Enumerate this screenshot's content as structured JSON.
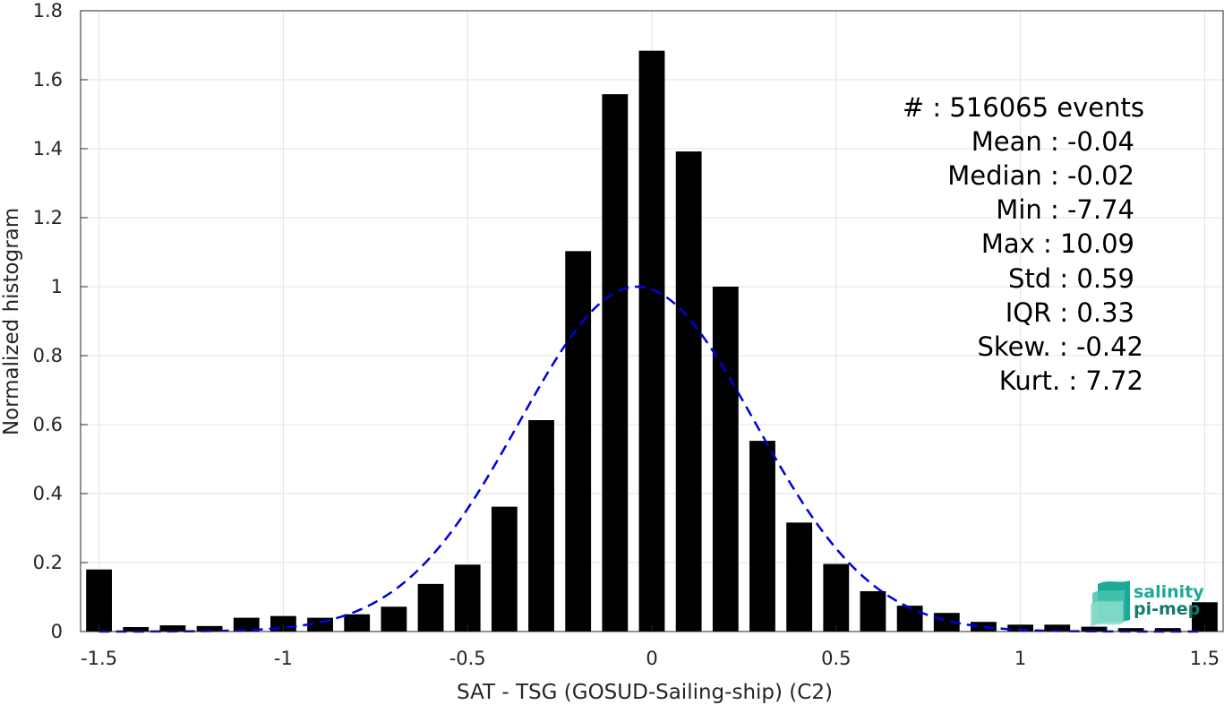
{
  "chart_data": {
    "type": "bar",
    "xlabel": "SAT - TSG (GOSUD-Sailing-ship) (C2)",
    "ylabel": "Normalized histogram",
    "xlim": [
      -1.55,
      1.55
    ],
    "ylim": [
      0,
      1.8
    ],
    "xticks": [
      -1.5,
      -1,
      -0.5,
      0,
      0.5,
      1,
      1.5
    ],
    "xtick_labels": [
      "-1.5",
      "-1",
      "-0.5",
      "0",
      "0.5",
      "1",
      "1.5"
    ],
    "yticks": [
      0,
      0.2,
      0.4,
      0.6,
      0.8,
      1,
      1.2,
      1.4,
      1.6,
      1.8
    ],
    "ytick_labels": [
      "0",
      "0.2",
      "0.4",
      "0.6",
      "0.8",
      "1",
      "1.2",
      "1.4",
      "1.6",
      "1.8"
    ],
    "grid": true,
    "bar_width": 0.07,
    "x": [
      -1.5,
      -1.4,
      -1.3,
      -1.2,
      -1.1,
      -1.0,
      -0.9,
      -0.8,
      -0.7,
      -0.6,
      -0.5,
      -0.4,
      -0.3,
      -0.2,
      -0.1,
      0.0,
      0.1,
      0.2,
      0.3,
      0.4,
      0.5,
      0.6,
      0.7,
      0.8,
      0.9,
      1.0,
      1.1,
      1.2,
      1.3,
      1.4,
      1.5
    ],
    "values": [
      0.18,
      0.013,
      0.018,
      0.016,
      0.04,
      0.045,
      0.04,
      0.05,
      0.072,
      0.138,
      0.194,
      0.362,
      0.613,
      1.103,
      1.558,
      1.684,
      1.392,
      1.0,
      0.553,
      0.316,
      0.196,
      0.117,
      0.075,
      0.054,
      0.028,
      0.02,
      0.02,
      0.014,
      0.01,
      0.01,
      0.085
    ],
    "bar_color": "#000000",
    "fit_curve": {
      "style": "dashed",
      "color": "#0000dd",
      "mean": -0.04,
      "std": 0.32,
      "peak": 1.0,
      "x_range": [
        -1.5,
        1.5
      ]
    }
  },
  "stats": [
    "#  : 516065 events",
    "Mean : -0.04",
    "Median : -0.02",
    "Min : -7.74",
    "Max : 10.09",
    "Std : 0.59",
    "IQR : 0.33",
    "Skew. : -0.42",
    "Kurt. : 7.72"
  ],
  "logo": {
    "line1": "salinity",
    "line2": "pi-mep",
    "color1": "#1aaa98",
    "color2": "#157a6e"
  }
}
